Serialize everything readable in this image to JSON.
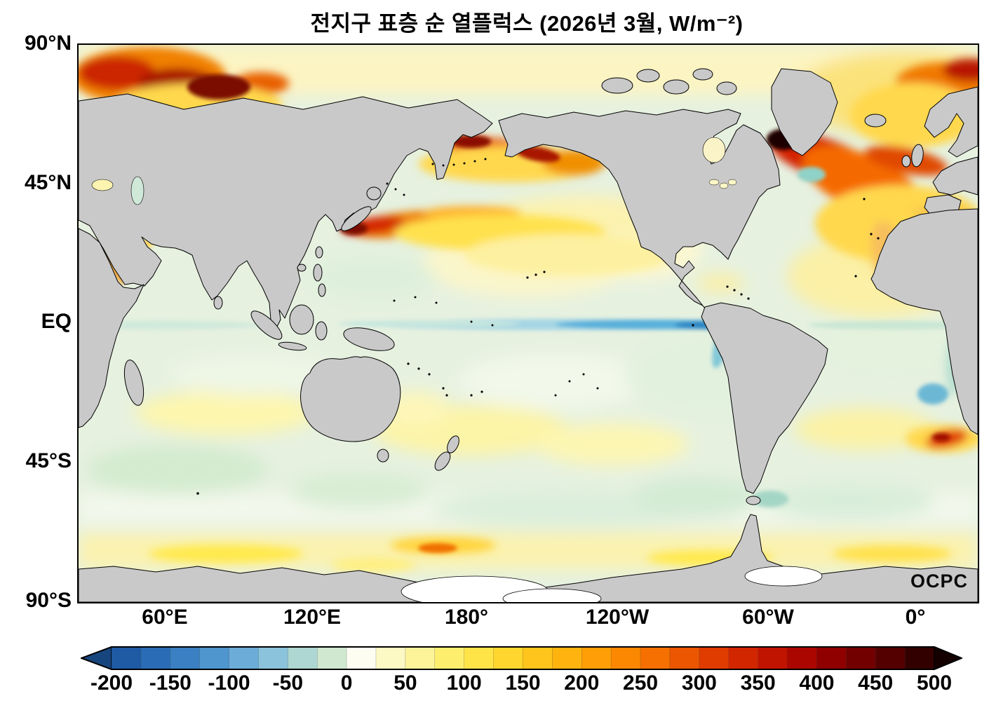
{
  "title": "전지구 표층 순 열플럭스 (2026년 3월, W/m⁻²)",
  "watermark": "OCPC",
  "map": {
    "lat_ticks": [
      "90°N",
      "45°N",
      "EQ",
      "45°S",
      "90°S"
    ],
    "lon_ticks": [
      "60°E",
      "120°E",
      "180°",
      "120°W",
      "60°W",
      "0°"
    ],
    "land_color": "#c9c9c9",
    "ocean_base_color": "#e6f1e0",
    "coastline_color": "#000000"
  },
  "chart_data": {
    "type": "heatmap",
    "title": "전지구 표층 순 열플럭스 (2026년 3월, W/m⁻²)",
    "variable": "global surface net heat flux",
    "period": "2026년 3월",
    "units": "W/m⁻²",
    "projection": "equirectangular, Pacific-centered (left edge ≈ 25°E)",
    "x_ticks": [
      "60°E",
      "120°E",
      "180°",
      "120°W",
      "60°W",
      "0°"
    ],
    "y_ticks": [
      "90°N",
      "45°N",
      "EQ",
      "45°S",
      "90°S"
    ],
    "colorbar": {
      "min": -200,
      "max": 500,
      "tick_step": 50,
      "ticks": [
        "-200",
        "-150",
        "-100",
        "-50",
        "0",
        "50",
        "100",
        "150",
        "200",
        "250",
        "300",
        "350",
        "400",
        "450",
        "500"
      ],
      "segment_step": 25,
      "left_arrow_color": "#17457e",
      "right_arrow_color": "#150000",
      "segment_colors": [
        "#1f5aa5",
        "#2a6cb5",
        "#3a80c2",
        "#4f95ce",
        "#6cacd8",
        "#8cc3dc",
        "#aed6d2",
        "#cfe8cf",
        "#fdfdf2",
        "#fdf9c4",
        "#fdf49a",
        "#fdee6e",
        "#ffe448",
        "#ffd62e",
        "#ffc51c",
        "#ffb30e",
        "#ff9e06",
        "#fb8800",
        "#f57000",
        "#ec5600",
        "#e03c00",
        "#d22600",
        "#c11400",
        "#ab0700",
        "#900000",
        "#730000",
        "#540000",
        "#330000"
      ]
    },
    "notable_features": [
      {
        "region": "Gulf Stream / NW Atlantic (off Newfoundland)",
        "approx_value_w_m2": 450
      },
      {
        "region": "Kuroshio Extension, NW Pacific",
        "approx_value_w_m2": 350
      },
      {
        "region": "Norwegian / Barents Sea (top left of map)",
        "approx_value_w_m2": 300
      },
      {
        "region": "Bering Sea / Aleutian arc / Gulf of Alaska",
        "approx_value_w_m2": 300
      },
      {
        "region": "NE Atlantic toward Europe (top right)",
        "approx_value_w_m2": 250
      },
      {
        "region": "Agulhas retroflection (~45°S near 20°E, right edge)",
        "approx_value_w_m2": 250
      },
      {
        "region": "Equatorial Pacific cold tongue (strongest near 120°W–90°W)",
        "approx_value_w_m2": -120
      },
      {
        "region": "Southern mid-latitude subtropics (yellow bands)",
        "approx_value_w_m2": 75
      },
      {
        "region": "Antarctic coastal band",
        "approx_value_w_m2": 75
      },
      {
        "region": "Tropical / subtropical ocean interiors (pale green)",
        "approx_value_w_m2": -25
      }
    ]
  }
}
